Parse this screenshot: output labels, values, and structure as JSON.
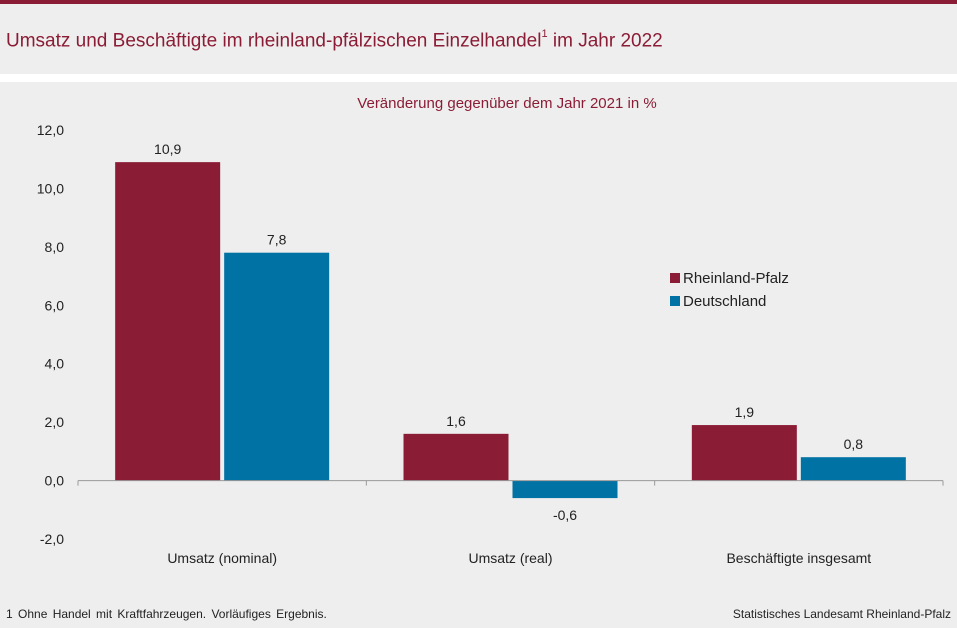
{
  "header": {
    "title": "Umsatz und Beschäftigte im rheinland-pfälzischen Einzelhandel",
    "title_sup": "1",
    "title_suffix": " im Jahr 2022"
  },
  "footer": {
    "footnote": "1 Ohne Handel mit Kraftfahrzeugen. Vorläufiges Ergebnis.",
    "source": "Statistisches Landesamt Rheinland-Pfalz"
  },
  "colors": {
    "accent": "#8b1c35",
    "series1": "#8b1c35",
    "series2": "#0072a3",
    "background": "#eeeeee"
  },
  "chart_data": {
    "type": "bar",
    "subtitle": "Veränderung gegenüber dem Jahr 2021 in %",
    "categories": [
      "Umsatz (nominal)",
      "Umsatz (real)",
      "Beschäftigte insgesamt"
    ],
    "series": [
      {
        "name": "Rheinland-Pfalz",
        "values": [
          10.9,
          1.6,
          1.9
        ],
        "labels": [
          "10,9",
          "1,6",
          "1,9"
        ]
      },
      {
        "name": "Deutschland",
        "values": [
          7.8,
          -0.6,
          0.8
        ],
        "labels": [
          "7,8",
          "-0,6",
          "0,8"
        ]
      }
    ],
    "yticks": [
      "-2,0",
      "0,0",
      "2,0",
      "4,0",
      "6,0",
      "8,0",
      "10,0",
      "12,0"
    ],
    "ytick_values": [
      -2,
      0,
      2,
      4,
      6,
      8,
      10,
      12
    ],
    "ylim": [
      -2,
      12
    ],
    "grid": false,
    "legend_position": "right"
  }
}
